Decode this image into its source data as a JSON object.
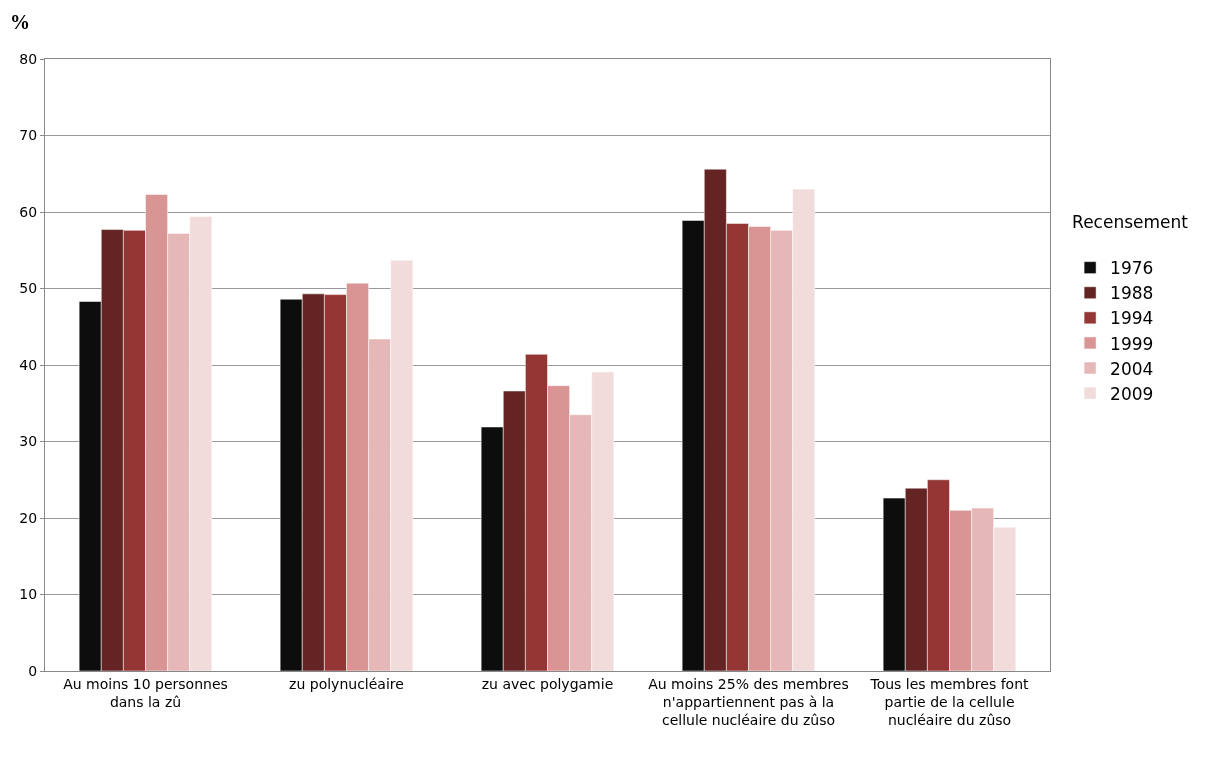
{
  "chart_data": {
    "type": "bar",
    "ylabel": "%",
    "legend_title": "Recensement",
    "categories": [
      "Au moins 10 personnes dans la zû",
      "zu polynucléaire",
      "zu avec polygamie",
      "Au moins 25% des membres n'appartiennent pas à la cellule nucléaire du zûso",
      "Tous les membres font partie de la cellule nucléaire du zûso"
    ],
    "series": [
      {
        "name": "1976",
        "color": "#0d0d0d",
        "values": [
          48.3,
          48.6,
          31.9,
          58.9,
          22.6
        ]
      },
      {
        "name": "1988",
        "color": "#632423",
        "values": [
          57.7,
          49.3,
          36.6,
          65.6,
          23.9
        ]
      },
      {
        "name": "1994",
        "color": "#943634",
        "values": [
          57.6,
          49.2,
          41.4,
          58.5,
          25.0
        ]
      },
      {
        "name": "1999",
        "color": "#d99594",
        "values": [
          62.3,
          50.7,
          37.3,
          58.1,
          21.0
        ]
      },
      {
        "name": "2004",
        "color": "#e5b8b7",
        "values": [
          57.2,
          43.4,
          33.5,
          57.6,
          21.3
        ]
      },
      {
        "name": "2009",
        "color": "#f2dcdb",
        "values": [
          59.4,
          53.7,
          39.1,
          63.0,
          18.8
        ]
      }
    ],
    "ylim": [
      0,
      80
    ],
    "yticks": [
      0,
      10,
      20,
      30,
      40,
      50,
      60,
      70,
      80
    ],
    "grid": "y",
    "legend": "right"
  }
}
